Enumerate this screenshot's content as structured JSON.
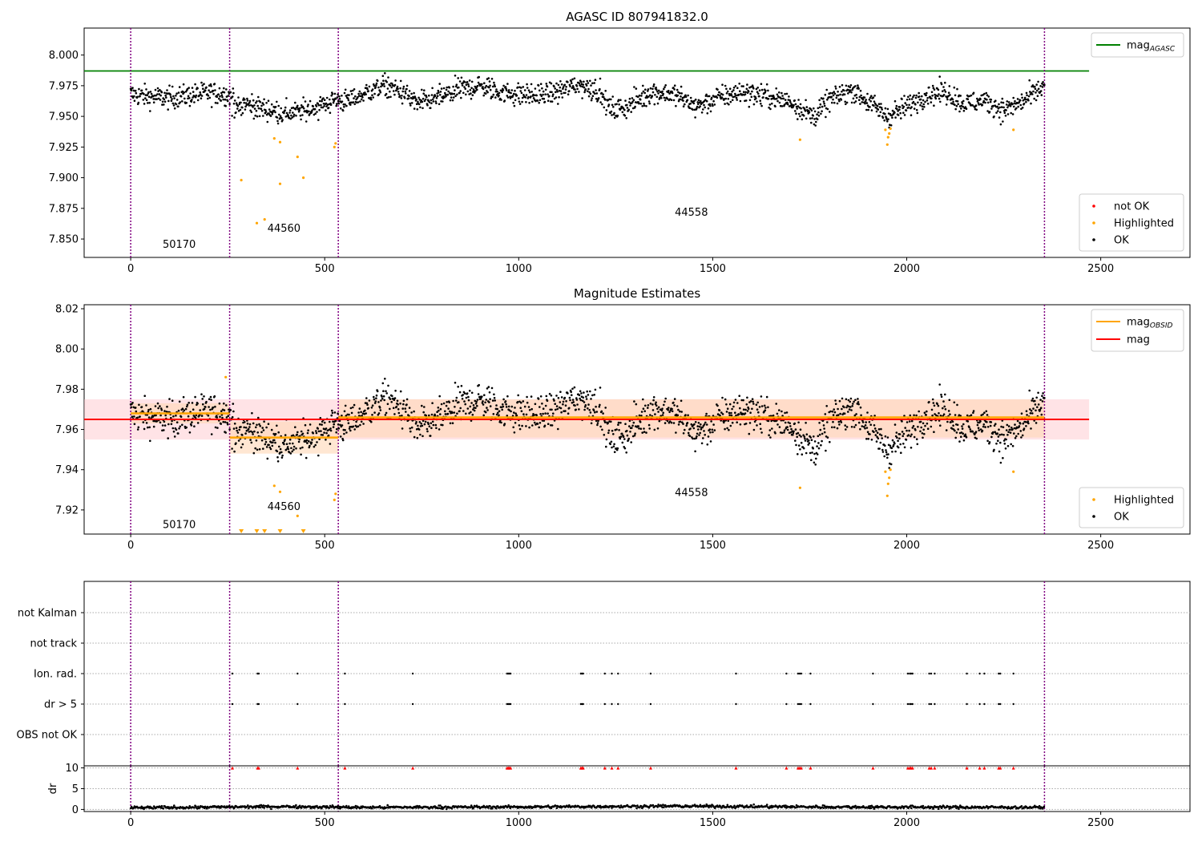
{
  "figure": {
    "title": "AGASC ID 807941832.0",
    "colors": {
      "agasc_line": "#008000",
      "obsid_line": "#ffa500",
      "mag_line": "#ff0000",
      "highlighted": "#ffa500",
      "not_ok": "#ff0000",
      "ok": "#000000",
      "obs_boundary": "#800080",
      "band_global": "#ffc0c8",
      "band_obsid": "#ffd7b5"
    }
  },
  "chart_data": [
    {
      "type": "scatter",
      "title": "AGASC ID 807941832.0",
      "xlim": [
        -120,
        2730
      ],
      "ylim": [
        7.835,
        8.022
      ],
      "x_ticks": [
        0,
        500,
        1000,
        1500,
        2000,
        2500
      ],
      "y_ticks": [
        7.85,
        7.875,
        7.9,
        7.925,
        7.95,
        7.975,
        8.0
      ],
      "y_tick_labels": [
        "7.850",
        "7.875",
        "7.900",
        "7.925",
        "7.950",
        "7.975",
        "8.000"
      ],
      "hlines": [
        {
          "name": "mag_AGASC",
          "y": 7.987,
          "x_range": [
            -120,
            2470
          ]
        }
      ],
      "obs_boundaries": [
        0,
        255,
        535,
        2355
      ],
      "obsid_labels": [
        {
          "text": "50170",
          "x": 125,
          "y": 7.843
        },
        {
          "text": "44560",
          "x": 395,
          "y": 7.856
        },
        {
          "text": "44558",
          "x": 1445,
          "y": 7.869
        }
      ],
      "legend_lines": [
        {
          "label": "mag",
          "sub": "AGASC"
        }
      ],
      "legend_points": [
        "not OK",
        "Highlighted",
        "OK"
      ],
      "highlighted_points": [
        [
          285,
          7.898
        ],
        [
          325,
          7.863
        ],
        [
          345,
          7.866
        ],
        [
          370,
          7.932
        ],
        [
          385,
          7.929
        ],
        [
          385,
          7.895
        ],
        [
          430,
          7.917
        ],
        [
          445,
          7.9
        ],
        [
          525,
          7.925
        ],
        [
          528,
          7.928
        ],
        [
          1725,
          7.931
        ],
        [
          1945,
          7.939
        ],
        [
          1950,
          7.927
        ],
        [
          1952,
          7.933
        ],
        [
          1955,
          7.936
        ],
        [
          1958,
          7.94
        ],
        [
          2275,
          7.939
        ]
      ],
      "ok_trend": [
        [
          0,
          7.968
        ],
        [
          50,
          7.966
        ],
        [
          100,
          7.965
        ],
        [
          150,
          7.967
        ],
        [
          200,
          7.969
        ],
        [
          250,
          7.968
        ],
        [
          280,
          7.962
        ],
        [
          320,
          7.958
        ],
        [
          360,
          7.955
        ],
        [
          400,
          7.952
        ],
        [
          450,
          7.955
        ],
        [
          500,
          7.96
        ],
        [
          530,
          7.964
        ],
        [
          560,
          7.962
        ],
        [
          600,
          7.968
        ],
        [
          650,
          7.975
        ],
        [
          700,
          7.97
        ],
        [
          740,
          7.96
        ],
        [
          800,
          7.966
        ],
        [
          850,
          7.972
        ],
        [
          900,
          7.975
        ],
        [
          950,
          7.97
        ],
        [
          1000,
          7.968
        ],
        [
          1050,
          7.967
        ],
        [
          1100,
          7.97
        ],
        [
          1150,
          7.976
        ],
        [
          1200,
          7.972
        ],
        [
          1240,
          7.955
        ],
        [
          1280,
          7.958
        ],
        [
          1340,
          7.97
        ],
        [
          1400,
          7.968
        ],
        [
          1460,
          7.958
        ],
        [
          1520,
          7.966
        ],
        [
          1580,
          7.97
        ],
        [
          1640,
          7.966
        ],
        [
          1700,
          7.962
        ],
        [
          1760,
          7.95
        ],
        [
          1800,
          7.963
        ],
        [
          1860,
          7.972
        ],
        [
          1900,
          7.962
        ],
        [
          1950,
          7.95
        ],
        [
          2000,
          7.958
        ],
        [
          2050,
          7.968
        ],
        [
          2100,
          7.97
        ],
        [
          2150,
          7.96
        ],
        [
          2200,
          7.963
        ],
        [
          2250,
          7.955
        ],
        [
          2300,
          7.962
        ],
        [
          2355,
          7.975
        ]
      ]
    },
    {
      "type": "scatter",
      "title": "Magnitude Estimates",
      "xlim": [
        -120,
        2730
      ],
      "ylim": [
        7.908,
        8.022
      ],
      "x_ticks": [
        0,
        500,
        1000,
        1500,
        2000,
        2500
      ],
      "y_ticks": [
        7.92,
        7.94,
        7.96,
        7.98,
        8.0,
        8.02
      ],
      "y_tick_labels": [
        "7.92",
        "7.94",
        "7.96",
        "7.98",
        "8.00",
        "8.02"
      ],
      "mag": 7.965,
      "mag_band": [
        7.955,
        7.975
      ],
      "mag_x_range": [
        -120,
        2470
      ],
      "obsid_segments": [
        {
          "x": [
            0,
            255
          ],
          "mag": 7.968,
          "band": [
            7.963,
            7.973
          ]
        },
        {
          "x": [
            255,
            535
          ],
          "mag": 7.956,
          "band": [
            7.948,
            7.964
          ]
        },
        {
          "x": [
            535,
            2355
          ],
          "mag": 7.966,
          "band": [
            7.956,
            7.975
          ]
        }
      ],
      "obs_boundaries": [
        0,
        255,
        535,
        2355
      ],
      "obsid_labels": [
        {
          "text": "50170",
          "x": 125,
          "y": 7.911
        },
        {
          "text": "44560",
          "x": 395,
          "y": 7.92
        },
        {
          "text": "44558",
          "x": 1445,
          "y": 7.927
        }
      ],
      "legend_lines": [
        {
          "label": "mag",
          "sub": "OBSID"
        },
        {
          "label": "mag",
          "sub": ""
        }
      ],
      "legend_points": [
        "Highlighted",
        "OK"
      ],
      "highlighted_points": [
        [
          245,
          7.986
        ],
        [
          370,
          7.932
        ],
        [
          385,
          7.929
        ],
        [
          430,
          7.917
        ],
        [
          525,
          7.925
        ],
        [
          528,
          7.928
        ],
        [
          1725,
          7.931
        ],
        [
          1945,
          7.939
        ],
        [
          1950,
          7.927
        ],
        [
          1952,
          7.933
        ],
        [
          1955,
          7.936
        ],
        [
          1958,
          7.94
        ],
        [
          2275,
          7.939
        ]
      ],
      "out_of_range_markers": [
        285,
        325,
        345,
        385,
        445
      ]
    },
    {
      "type": "scatter",
      "title": "",
      "xlim": [
        -120,
        2730
      ],
      "flag_rows": [
        "not Kalman",
        "not track",
        "Ion. rad.",
        "dr > 5",
        "OBS not OK"
      ],
      "flag_x": [
        262,
        327,
        330,
        430,
        552,
        727,
        970,
        973,
        976,
        979,
        1160,
        1163,
        1166,
        1222,
        1240,
        1256,
        1340,
        1560,
        1690,
        1720,
        1724,
        1728,
        1752,
        1913,
        2003,
        2008,
        2011,
        2015,
        2058,
        2063,
        2072,
        2155,
        2188,
        2200,
        2237,
        2241,
        2275
      ],
      "flagged_rows": [
        "Ion. rad.",
        "dr > 5"
      ]
    },
    {
      "type": "scatter",
      "title": "",
      "ylabel": "dr",
      "xlim": [
        -120,
        2730
      ],
      "ylim": [
        -0.5,
        10.5
      ],
      "x_ticks": [
        0,
        500,
        1000,
        1500,
        2000,
        2500
      ],
      "y_ticks": [
        0,
        5,
        10
      ],
      "y_tick_labels": [
        "0",
        "5",
        "10"
      ],
      "clipped_marker_value": 10,
      "clipped_x": [
        262,
        327,
        330,
        430,
        552,
        727,
        970,
        973,
        976,
        979,
        1160,
        1163,
        1166,
        1222,
        1240,
        1256,
        1340,
        1560,
        1690,
        1720,
        1724,
        1728,
        1752,
        1913,
        2003,
        2008,
        2011,
        2015,
        2058,
        2063,
        2072,
        2155,
        2188,
        2200,
        2237,
        2241,
        2275
      ],
      "dr_trend": [
        [
          0,
          0.4
        ],
        [
          400,
          0.7
        ],
        [
          600,
          0.5
        ],
        [
          1000,
          0.6
        ],
        [
          1400,
          0.8
        ],
        [
          1800,
          0.6
        ],
        [
          2355,
          0.5
        ]
      ]
    }
  ]
}
